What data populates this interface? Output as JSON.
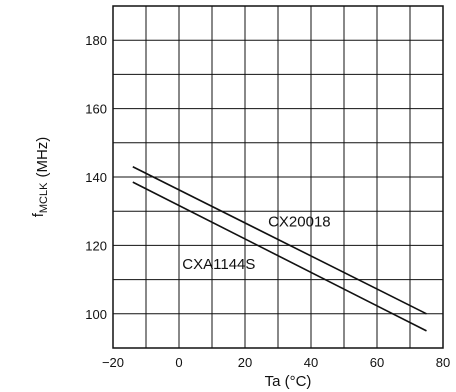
{
  "chart_data": {
    "type": "line",
    "title": "",
    "xlabel": "Ta (°C)",
    "ylabel": "MHz",
    "ylabel_sub": "MCLK",
    "ylabel_prefix": "f",
    "ylabel_unit": "(MHz)",
    "xlim": [
      -20,
      80
    ],
    "ylim": [
      90,
      190
    ],
    "x_ticks": [
      -20,
      0,
      20,
      40,
      60,
      80
    ],
    "x_tick_labels": [
      "−20",
      "0",
      "20",
      "40",
      "60",
      "80"
    ],
    "y_ticks": [
      100,
      120,
      140,
      160,
      180
    ],
    "y_tick_labels": [
      "100",
      "120",
      "140",
      "160",
      "180"
    ],
    "grid": true,
    "series": [
      {
        "name": "CX20018",
        "x": [
          -14,
          75
        ],
        "y": [
          143,
          100
        ]
      },
      {
        "name": "CXA1144S",
        "x": [
          -14,
          75
        ],
        "y": [
          138.5,
          95
        ]
      }
    ]
  }
}
